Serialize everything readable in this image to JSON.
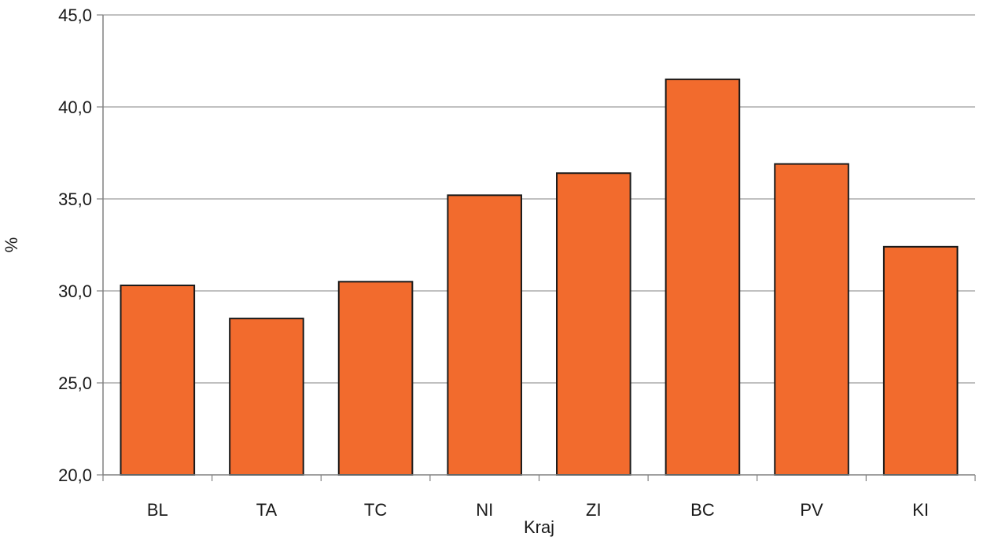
{
  "chart_data": {
    "type": "bar",
    "title": "",
    "xlabel": "Kraj",
    "ylabel": "%",
    "categories": [
      "BL",
      "TA",
      "TC",
      "NI",
      "ZI",
      "BC",
      "PV",
      "KI"
    ],
    "values": [
      30.3,
      28.5,
      30.5,
      35.2,
      36.4,
      41.5,
      36.9,
      32.4
    ],
    "ylim": [
      20,
      45
    ],
    "yticks": [
      20,
      25,
      30,
      35,
      40,
      45
    ],
    "ytick_labels": [
      "20,0",
      "25,0",
      "30,0",
      "35,0",
      "40,0",
      "45,0"
    ],
    "grid": true,
    "legend": "none",
    "bar_color": "#F26B2D",
    "bar_edge_color": "#1a1a1a",
    "grid_color": "#808080",
    "axis_color": "#808080"
  }
}
